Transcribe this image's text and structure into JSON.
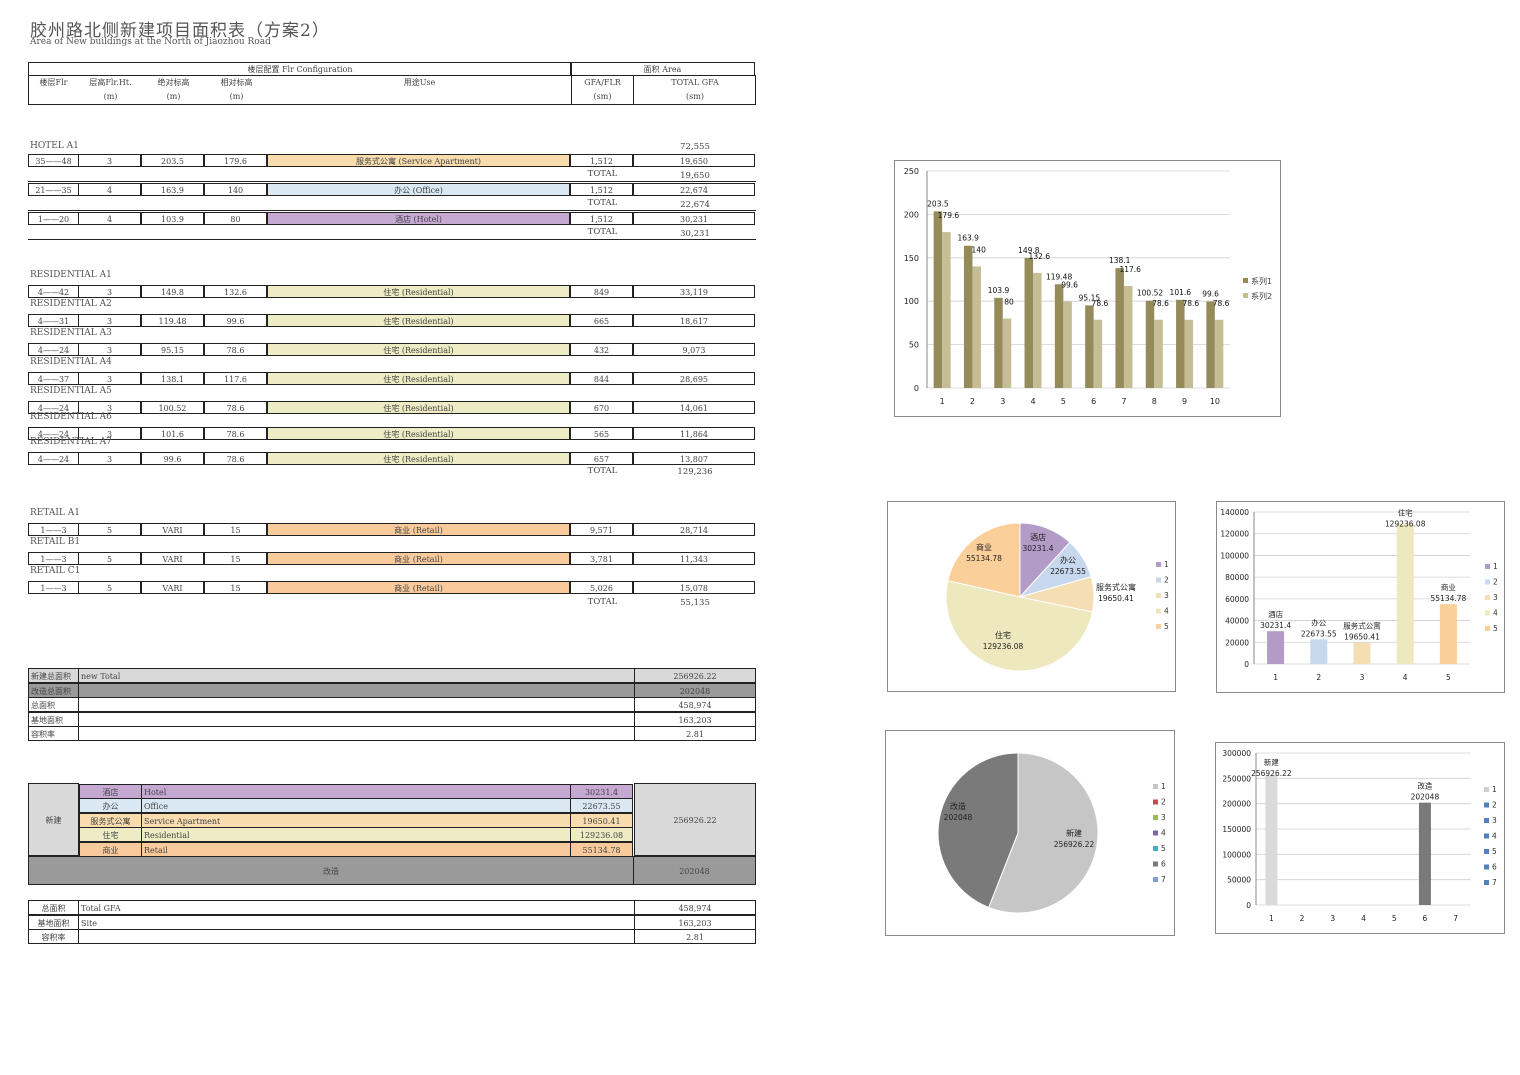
{
  "title": "胶州路北侧新建项目面积表（方案2）",
  "subtitle": "Area of New buildings at the North of Jiaozhou Road",
  "header": {
    "group_config": "楼层配置 Flr Configuration",
    "group_area": "面积  Area",
    "floor": "楼层Flr",
    "height": "层高Flr.Ht.",
    "abs": "绝对标高",
    "rel": "相对标高",
    "use": "用途Use",
    "gfa_flr": "GFA/FLR",
    "total_gfa": "TOTAL GFA",
    "unit_m": "(m)",
    "unit_sm": "(sm)"
  },
  "hotel": {
    "label": "HOTEL A1",
    "total": "72,555",
    "rows": [
      {
        "floor": "35——48",
        "ht": "3",
        "abs": "203.5",
        "rel": "179.6",
        "use": "服务式公寓  (Service Apartment)",
        "gfa": "1,512",
        "total": "19,650",
        "sub_label": "TOTAL",
        "sub": "19,650"
      },
      {
        "floor": "21——35",
        "ht": "4",
        "abs": "163.9",
        "rel": "140",
        "use": "办公  (Office)",
        "gfa": "1,512",
        "total": "22,674",
        "sub_label": "TOTAL",
        "sub": "22,674"
      },
      {
        "floor": "1——20",
        "ht": "4",
        "abs": "103.9",
        "rel": "80",
        "use": "酒店  (Hotel)",
        "gfa": "1,512",
        "total": "30,231",
        "sub_label": "TOTAL",
        "sub": "30,231"
      }
    ]
  },
  "residential": {
    "blocks": [
      {
        "label": "RESIDENTIAL A1",
        "floor": "4——42",
        "ht": "3",
        "abs": "149.8",
        "rel": "132.6",
        "use": "住宅  (Residential)",
        "gfa": "849",
        "total": "33,119"
      },
      {
        "label": "RESIDENTIAL A2",
        "floor": "4——31",
        "ht": "3",
        "abs": "119.48",
        "rel": "99.6",
        "use": "住宅  (Residential)",
        "gfa": "665",
        "total": "18,617"
      },
      {
        "label": "RESIDENTIAL A3",
        "floor": "4——24",
        "ht": "3",
        "abs": "95.15",
        "rel": "78.6",
        "use": "住宅  (Residential)",
        "gfa": "432",
        "total": "9,073"
      },
      {
        "label": "RESIDENTIAL A4",
        "floor": "4——37",
        "ht": "3",
        "abs": "138.1",
        "rel": "117.6",
        "use": "住宅  (Residential)",
        "gfa": "844",
        "total": "28,695"
      },
      {
        "label": "RESIDENTIAL A5",
        "floor": "4——24",
        "ht": "3",
        "abs": "100.52",
        "rel": "78.6",
        "use": "住宅  (Residential)",
        "gfa": "670",
        "total": "14,061"
      },
      {
        "label": "RESIDENTIAL A6",
        "floor": "4——24",
        "ht": "3",
        "abs": "101.6",
        "rel": "78.6",
        "use": "住宅  (Residential)",
        "gfa": "565",
        "total": "11,864"
      },
      {
        "label": "RESIDENTIAL A7",
        "floor": "4——24",
        "ht": "3",
        "abs": "99.6",
        "rel": "78.6",
        "use": "住宅  (Residential)",
        "gfa": "657",
        "total": "13,807"
      }
    ],
    "total_label": "TOTAL",
    "total": "129,236"
  },
  "retail": {
    "blocks": [
      {
        "label": "RETAIL A1",
        "floor": "1——3",
        "ht": "5",
        "abs": "VARI",
        "rel": "15",
        "use": "商业  (Retail)",
        "gfa": "9,571",
        "total": "28,714"
      },
      {
        "label": "RETAIL B1",
        "floor": "1——3",
        "ht": "5",
        "abs": "VARI",
        "rel": "15",
        "use": "商业  (Retail)",
        "gfa": "3,781",
        "total": "11,343"
      },
      {
        "label": "RETAIL C1",
        "floor": "1——3",
        "ht": "5",
        "abs": "VARI",
        "rel": "15",
        "use": "商业  (Retail)",
        "gfa": "5,026",
        "total": "15,078"
      }
    ],
    "total_label": "TOTAL",
    "total": "55,135"
  },
  "summary": [
    {
      "label": "新建总面积",
      "desc": "new Total",
      "value": "256926.22"
    },
    {
      "label": "改造总面积",
      "desc": "",
      "value": "202048"
    },
    {
      "label": "总面积",
      "desc": "",
      "value": "458,974"
    },
    {
      "label": "基地面积",
      "desc": "",
      "value": "163,203"
    },
    {
      "label": "容积率",
      "desc": "",
      "value": "2.81"
    }
  ],
  "breakdown": {
    "new_label": "新建",
    "new_total": "256926.22",
    "rows": [
      {
        "cn": "酒店",
        "en": "Hotel",
        "value": "30231.4"
      },
      {
        "cn": "办公",
        "en": "Office",
        "value": "22673.55"
      },
      {
        "cn": "服务式公寓",
        "en": "Service Apartment",
        "value": "19650.41"
      },
      {
        "cn": "住宅",
        "en": "Residential",
        "value": "129236.08"
      },
      {
        "cn": "商业",
        "en": "Retail",
        "value": "55134.78"
      }
    ],
    "renov_label": "改造",
    "renov_total": "202048"
  },
  "site": [
    {
      "label": "总面积",
      "desc": "Total GFA",
      "value": "458,974"
    },
    {
      "label": "基地面积",
      "desc": "Site",
      "value": "163,203"
    },
    {
      "label": "容积率",
      "desc": "",
      "value": "2.81"
    }
  ],
  "colors": {
    "hotel": "#b39bc8",
    "office": "#c7d7ee",
    "service": "#f5deb3",
    "residential": "#ede8bd",
    "retail": "#fbcf9a",
    "series1": "#958b5a",
    "series2": "#c5bd93",
    "new": "#c6c6c6",
    "renov": "#7a7a7a"
  },
  "chart_data": [
    {
      "type": "bar",
      "categories": [
        "1",
        "2",
        "3",
        "4",
        "5",
        "6",
        "7",
        "8",
        "9",
        "10"
      ],
      "series": [
        {
          "name": "系列1",
          "values": [
            203.5,
            163.9,
            103.9,
            149.8,
            119.48,
            95.15,
            138.1,
            100.52,
            101.6,
            99.6
          ]
        },
        {
          "name": "系列2",
          "values": [
            179.6,
            140,
            80,
            132.6,
            99.6,
            78.6,
            117.6,
            78.6,
            78.6,
            78.6
          ]
        }
      ],
      "ylim": [
        0,
        250
      ],
      "yticks": [
        0,
        50,
        100,
        150,
        200,
        250
      ],
      "legend": "right"
    },
    {
      "type": "pie",
      "slices": [
        {
          "name": "酒店",
          "value": 30231.4
        },
        {
          "name": "办公",
          "value": 22673.55
        },
        {
          "name": "服务式公寓",
          "value": 19650.41
        },
        {
          "name": "住宅",
          "value": 129236.08
        },
        {
          "name": "商业",
          "value": 55134.78
        }
      ],
      "legend": [
        "1",
        "2",
        "3",
        "4",
        "5"
      ]
    },
    {
      "type": "bar",
      "categories": [
        "1",
        "2",
        "3",
        "4",
        "5"
      ],
      "values": [
        30231.4,
        22673.55,
        19650.41,
        129236.08,
        55134.78
      ],
      "labels": [
        "酒店",
        "办公",
        "服务式公寓",
        "住宅",
        "商业"
      ],
      "ylim": [
        0,
        140000
      ],
      "yticks": [
        0,
        20000,
        40000,
        60000,
        80000,
        100000,
        120000,
        140000
      ],
      "legend": [
        "1",
        "2",
        "3",
        "4",
        "5"
      ]
    },
    {
      "type": "pie",
      "slices": [
        {
          "name": "新建",
          "value": 256926.22
        },
        {
          "name": "改造",
          "value": 202048
        }
      ],
      "legend": [
        "1",
        "2",
        "3",
        "4",
        "5",
        "6",
        "7"
      ]
    },
    {
      "type": "bar",
      "categories": [
        "1",
        "2",
        "3",
        "4",
        "5",
        "6",
        "7"
      ],
      "values": [
        256926.22,
        0,
        0,
        0,
        0,
        202048,
        0
      ],
      "labels": [
        "新建",
        "",
        "",
        "",
        "",
        "改造",
        ""
      ],
      "ylim": [
        0,
        300000
      ],
      "yticks": [
        0,
        50000,
        100000,
        150000,
        200000,
        250000,
        300000
      ],
      "legend": [
        "1",
        "2",
        "3",
        "4",
        "5",
        "6",
        "7"
      ]
    }
  ]
}
